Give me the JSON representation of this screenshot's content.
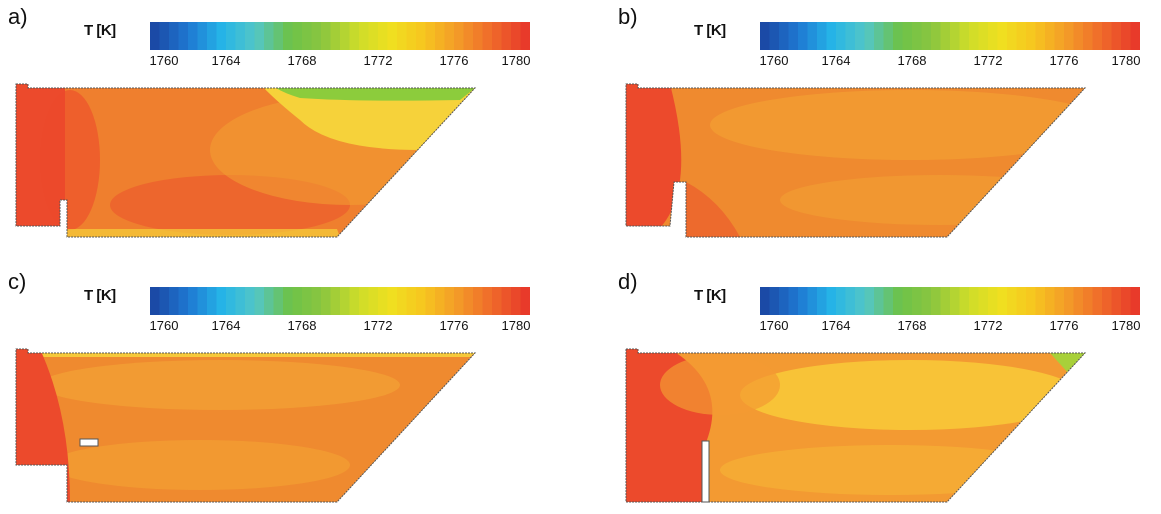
{
  "colorbar": {
    "label": "T [K]",
    "ticks": [
      "1760",
      "1764",
      "1768",
      "1772",
      "1776",
      "1780"
    ],
    "colors": [
      "#1b4aa6",
      "#1e78d2",
      "#25b5e8",
      "#53c6c6",
      "#6cc24a",
      "#8cc63f",
      "#cbdc2a",
      "#f0e020",
      "#f7c51f",
      "#f39a28",
      "#ef6a2a",
      "#e83a2a"
    ]
  },
  "panels": [
    {
      "label": "a)",
      "hot": "#ec4a2c",
      "mid": "#ef7f2e",
      "warm": "#f3a033",
      "cool": "#f6d23a",
      "edge": "#8ccc3c"
    },
    {
      "label": "b)",
      "hot": "#ec4a2c",
      "mid": "#ef8a2f",
      "warm": "#f4a334",
      "cool": "#f8c13a",
      "edge": "#f0b638"
    },
    {
      "label": "c)",
      "hot": "#ec4a2c",
      "mid": "#ef8a2f",
      "warm": "#f4a334",
      "cool": "#f6c93a",
      "edge": "#6cc24a"
    },
    {
      "label": "d)",
      "hot": "#ec4a2c",
      "mid": "#f39a32",
      "warm": "#f7b636",
      "cool": "#fad03a",
      "edge": "#a8d03a"
    }
  ]
}
